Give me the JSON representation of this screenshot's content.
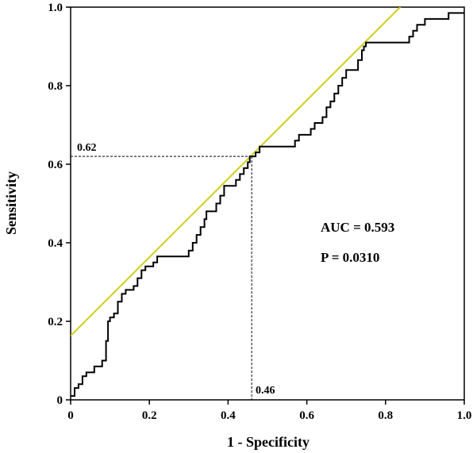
{
  "chart_data": {
    "type": "line",
    "xlabel": "1 - Specificity",
    "ylabel": "Sensitivity",
    "xlim": [
      0,
      1
    ],
    "ylim": [
      0,
      1
    ],
    "xticks": [
      "0",
      "0.2",
      "0.4",
      "0.6",
      "0.8",
      "1.0"
    ],
    "xtick_values": [
      0,
      0.2,
      0.4,
      0.6,
      0.8,
      1.0
    ],
    "yticks": [
      "0",
      "0.2",
      "0.4",
      "0.6",
      "0.8",
      "1.0"
    ],
    "ytick_values": [
      0,
      0.2,
      0.4,
      0.6,
      0.8,
      1.0
    ],
    "annotations": {
      "auc": "AUC = 0.593",
      "p": "P = 0.0310",
      "cut_y_label": "0.62",
      "cut_x_label": "0.46"
    },
    "cutoff": {
      "x": 0.46,
      "y": 0.62
    },
    "tangent_line": {
      "color": "#d4cc1a",
      "intercept": 0.163,
      "slope": 1.0
    },
    "roc_color": "#000000",
    "roc": [
      [
        0,
        0.01
      ],
      [
        0.01,
        0.01
      ],
      [
        0.01,
        0.03
      ],
      [
        0.02,
        0.03
      ],
      [
        0.02,
        0.04
      ],
      [
        0.03,
        0.04
      ],
      [
        0.03,
        0.06
      ],
      [
        0.04,
        0.06
      ],
      [
        0.04,
        0.07
      ],
      [
        0.06,
        0.07
      ],
      [
        0.06,
        0.085
      ],
      [
        0.08,
        0.085
      ],
      [
        0.08,
        0.1
      ],
      [
        0.09,
        0.1
      ],
      [
        0.09,
        0.15
      ],
      [
        0.095,
        0.15
      ],
      [
        0.095,
        0.2
      ],
      [
        0.1,
        0.2
      ],
      [
        0.1,
        0.21
      ],
      [
        0.11,
        0.21
      ],
      [
        0.11,
        0.22
      ],
      [
        0.12,
        0.22
      ],
      [
        0.12,
        0.25
      ],
      [
        0.13,
        0.25
      ],
      [
        0.13,
        0.27
      ],
      [
        0.14,
        0.27
      ],
      [
        0.14,
        0.28
      ],
      [
        0.16,
        0.28
      ],
      [
        0.16,
        0.29
      ],
      [
        0.17,
        0.29
      ],
      [
        0.17,
        0.31
      ],
      [
        0.18,
        0.31
      ],
      [
        0.18,
        0.33
      ],
      [
        0.19,
        0.33
      ],
      [
        0.19,
        0.34
      ],
      [
        0.21,
        0.34
      ],
      [
        0.21,
        0.35
      ],
      [
        0.22,
        0.35
      ],
      [
        0.22,
        0.365
      ],
      [
        0.3,
        0.365
      ],
      [
        0.3,
        0.38
      ],
      [
        0.31,
        0.38
      ],
      [
        0.31,
        0.4
      ],
      [
        0.32,
        0.4
      ],
      [
        0.32,
        0.42
      ],
      [
        0.33,
        0.42
      ],
      [
        0.33,
        0.44
      ],
      [
        0.34,
        0.44
      ],
      [
        0.34,
        0.46
      ],
      [
        0.345,
        0.46
      ],
      [
        0.345,
        0.48
      ],
      [
        0.37,
        0.48
      ],
      [
        0.37,
        0.5
      ],
      [
        0.38,
        0.5
      ],
      [
        0.38,
        0.52
      ],
      [
        0.39,
        0.52
      ],
      [
        0.39,
        0.545
      ],
      [
        0.42,
        0.545
      ],
      [
        0.42,
        0.56
      ],
      [
        0.43,
        0.56
      ],
      [
        0.43,
        0.575
      ],
      [
        0.44,
        0.575
      ],
      [
        0.44,
        0.59
      ],
      [
        0.45,
        0.59
      ],
      [
        0.45,
        0.605
      ],
      [
        0.455,
        0.605
      ],
      [
        0.455,
        0.62
      ],
      [
        0.47,
        0.62
      ],
      [
        0.47,
        0.63
      ],
      [
        0.48,
        0.63
      ],
      [
        0.48,
        0.645
      ],
      [
        0.57,
        0.645
      ],
      [
        0.57,
        0.66
      ],
      [
        0.58,
        0.66
      ],
      [
        0.58,
        0.675
      ],
      [
        0.61,
        0.675
      ],
      [
        0.61,
        0.69
      ],
      [
        0.62,
        0.69
      ],
      [
        0.62,
        0.705
      ],
      [
        0.64,
        0.705
      ],
      [
        0.64,
        0.72
      ],
      [
        0.65,
        0.72
      ],
      [
        0.65,
        0.745
      ],
      [
        0.66,
        0.745
      ],
      [
        0.66,
        0.76
      ],
      [
        0.67,
        0.76
      ],
      [
        0.67,
        0.78
      ],
      [
        0.68,
        0.78
      ],
      [
        0.68,
        0.8
      ],
      [
        0.69,
        0.8
      ],
      [
        0.69,
        0.82
      ],
      [
        0.7,
        0.82
      ],
      [
        0.7,
        0.84
      ],
      [
        0.73,
        0.84
      ],
      [
        0.73,
        0.865
      ],
      [
        0.74,
        0.865
      ],
      [
        0.74,
        0.89
      ],
      [
        0.745,
        0.89
      ],
      [
        0.745,
        0.9
      ],
      [
        0.75,
        0.9
      ],
      [
        0.75,
        0.91
      ],
      [
        0.86,
        0.91
      ],
      [
        0.86,
        0.925
      ],
      [
        0.87,
        0.925
      ],
      [
        0.87,
        0.94
      ],
      [
        0.88,
        0.94
      ],
      [
        0.88,
        0.955
      ],
      [
        0.9,
        0.955
      ],
      [
        0.9,
        0.97
      ],
      [
        0.96,
        0.97
      ],
      [
        0.96,
        0.985
      ],
      [
        1.0,
        0.985
      ]
    ]
  }
}
